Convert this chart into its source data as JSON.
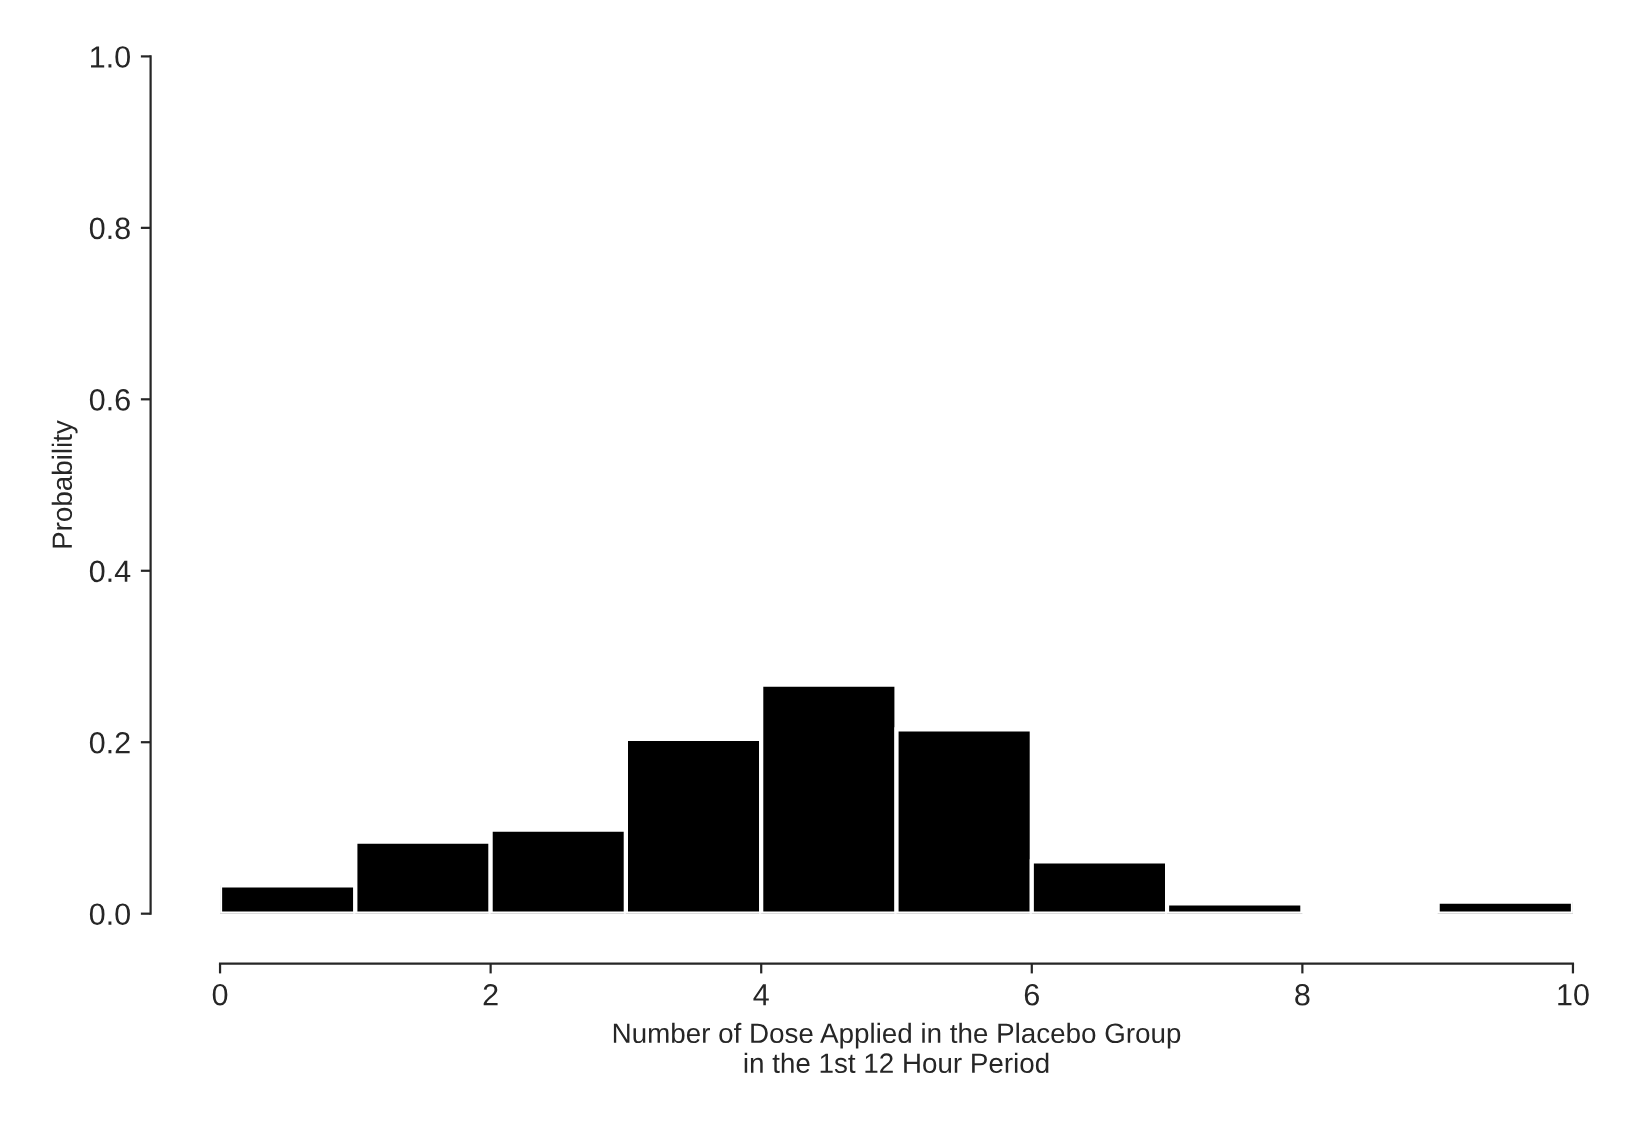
{
  "chart_data": {
    "type": "histogram",
    "xlabel": "Number of Dose Applied in the Placebo Group\nin the 1st 12 Hour Period",
    "ylabel": "Probability",
    "bins": [
      0,
      1,
      2,
      3,
      4,
      5,
      6,
      7,
      8,
      9,
      10
    ],
    "values": [
      0.033,
      0.084,
      0.098,
      0.204,
      0.267,
      0.215,
      0.061,
      0.012,
      0,
      0.014
    ],
    "color": "#000000",
    "xlim": [
      0,
      10
    ],
    "ylim": [
      0,
      1
    ],
    "xticks": [
      0,
      2,
      4,
      6,
      8,
      10
    ],
    "yticks": [
      {
        "value": 0,
        "label": "0.0"
      },
      {
        "value": 0.2,
        "label": "0.2"
      },
      {
        "value": 0.4,
        "label": "0.4"
      },
      {
        "value": 0.6,
        "label": "0.6"
      },
      {
        "value": 0.8,
        "label": "0.8"
      },
      {
        "value": 1,
        "label": "1.0"
      }
    ],
    "grid": false
  }
}
